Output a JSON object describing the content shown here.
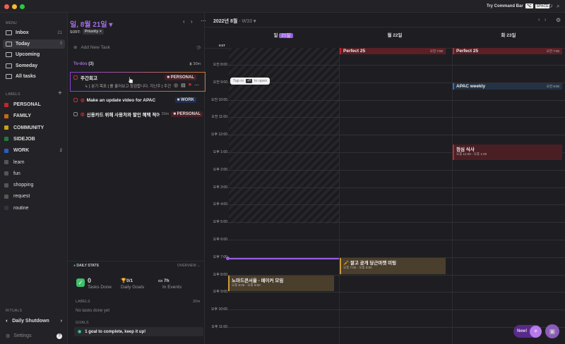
{
  "titlebar": {
    "command_bar": "Try Command Bar",
    "shortcut_symbol": "⌥",
    "shortcut_key": "SPACE"
  },
  "sidebar": {
    "menu_heading": "MENU",
    "items": [
      {
        "label": "Inbox",
        "count": "21"
      },
      {
        "label": "Today",
        "count": "3"
      },
      {
        "label": "Upcoming",
        "count": ""
      },
      {
        "label": "Someday",
        "count": ""
      },
      {
        "label": "All tasks",
        "count": ""
      }
    ],
    "labels_heading": "LABELS",
    "labels": [
      {
        "label": "PERSONAL",
        "color": "#c0262d",
        "count": ""
      },
      {
        "label": "FAMILY",
        "color": "#c46a12",
        "count": ""
      },
      {
        "label": "COMMUNITY",
        "color": "#c8a21a",
        "count": ""
      },
      {
        "label": "SIDEJOB",
        "color": "#1f7a3f",
        "count": ""
      },
      {
        "label": "WORK",
        "color": "#2b5cc0",
        "count": "2"
      },
      {
        "label": "learn",
        "color": "#555",
        "count": ""
      },
      {
        "label": "fun",
        "color": "#555",
        "count": ""
      },
      {
        "label": "shopping",
        "color": "#555",
        "count": ""
      },
      {
        "label": "request",
        "color": "#555",
        "count": ""
      },
      {
        "label": "routine",
        "color": "#334",
        "count": ""
      }
    ],
    "rituals_heading": "RITUALS",
    "daily_shutdown": "Daily Shutdown",
    "settings": "Settings",
    "help": "?"
  },
  "tasks": {
    "date_title": "일, 8월 21일",
    "sort_label": "SORT:",
    "sort_value": "Priority",
    "add_task": "Add New Task",
    "section": "To-dos",
    "section_count": "(3)",
    "section_time": "30m",
    "items": [
      {
        "title": "주간회고",
        "subtitle": "↳ [ 분기 목표 ] 를 훑어보고 점검합니다. 지난주 [ 주간 회",
        "tag": "PERSONAL",
        "tag_color": "#c0262d",
        "time": ""
      },
      {
        "title": "Make an update video for APAC",
        "tag": "WORK",
        "tag_color": "#2b5cc0",
        "time": ""
      },
      {
        "title": "신용카드 위해 사용처와 할인 혜택 적어두기",
        "tag": "PERSONAL",
        "tag_color": "#c0262d",
        "time": "30m"
      }
    ],
    "tooltip": {
      "pre": "Tap or",
      "key": "⏎",
      "post": "to open"
    },
    "stats": {
      "heading": "DAILY STATS",
      "overview": "OVERVIEW",
      "tasks_done": "0",
      "tasks_done_label": "Tasks Done",
      "goals": "0/1",
      "goals_label": "Daily Goals",
      "events": "7h",
      "events_label": "In Events",
      "labels_heading": "LABELS",
      "labels_time": "30m",
      "no_tasks": "No tasks done yet",
      "goals_heading": "GOALS",
      "goal_msg": "1 goal to complete, keep it up!"
    }
  },
  "calendar": {
    "month": "2022년 8월",
    "week": "- W33",
    "timezone": "KST",
    "days": [
      {
        "dow": "일",
        "date": "21일",
        "today": true
      },
      {
        "dow": "월",
        "date": "22일"
      },
      {
        "dow": "화",
        "date": "23일"
      }
    ],
    "hours": [
      "오전 8:00",
      "오전 9:00",
      "오전 10:00",
      "오전 11:00",
      "오후 12:00",
      "오후 1:00",
      "오후 2:00",
      "오후 3:00",
      "오후 4:00",
      "오후 5:00",
      "오후 6:00",
      "오후 7:00",
      "오후 8:00",
      "오후 9:00",
      "오후 10:00",
      "오후 11:00"
    ],
    "events": [
      {
        "title": "Perfect 25",
        "time": "오전 7:00",
        "day": 1,
        "color": "#5a2025",
        "border": "#c0262d"
      },
      {
        "title": "Perfect 25",
        "time": "오전 7:00",
        "day": 2,
        "color": "#5a2025",
        "border": "#c0262d"
      },
      {
        "title": "APAC weekly",
        "time": "오전 9:00",
        "day": 2,
        "color": "#243344",
        "border": "#2b6fc0"
      },
      {
        "title": "점심 식사",
        "time": "오후 12:30 - 오후 1:00",
        "day": 2,
        "color": "#4a1f24",
        "border": "#c0262d"
      },
      {
        "title": "🥕 쌀고 공개 당근마켓 미팅",
        "time": "오후 7:00 - 오후 8:00",
        "day": 1,
        "color": "#4a3e2c",
        "border": "#c99a3a"
      },
      {
        "title": "노마드콘서울 - 매이커 모임",
        "time": "오후 8:00 - 오후 9:00",
        "day": 0,
        "color": "#4a3e2c",
        "border": "#c99a3a"
      }
    ],
    "new_button": "New!"
  }
}
